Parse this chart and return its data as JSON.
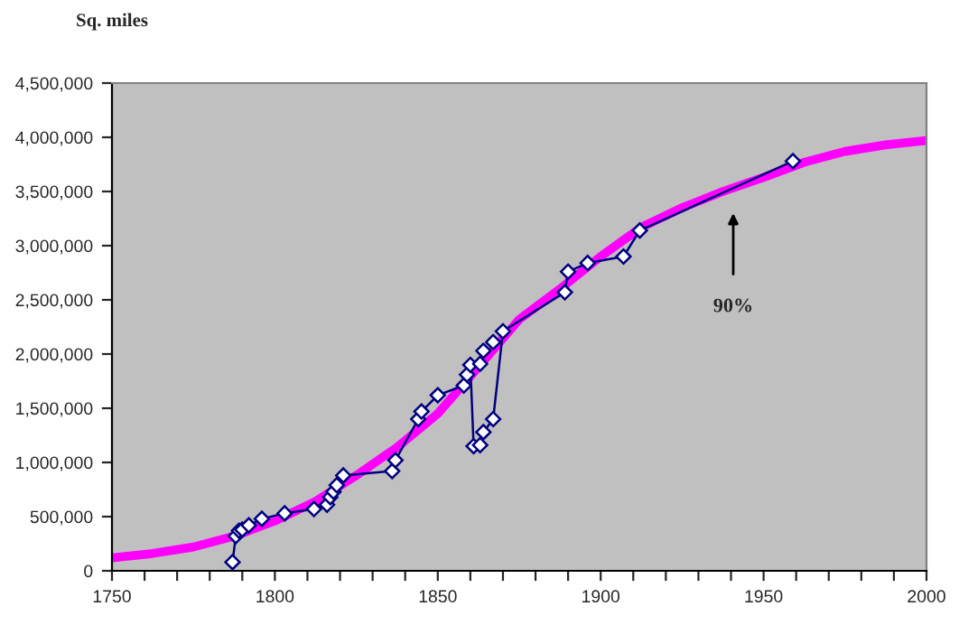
{
  "chart_data": {
    "type": "line",
    "ylabel": "Sq. miles",
    "xlim": [
      1750,
      2000
    ],
    "ylim": [
      0,
      4500000
    ],
    "xticks": [
      1750,
      {
        "value": 1760,
        "label": null
      },
      {
        "value": 1770,
        "label": null
      },
      {
        "value": 1780,
        "label": null
      },
      {
        "value": 1790,
        "label": null
      },
      1800,
      {
        "value": 1810,
        "label": null
      },
      {
        "value": 1820,
        "label": null
      },
      {
        "value": 1830,
        "label": null
      },
      {
        "value": 1840,
        "label": null
      },
      1850,
      {
        "value": 1860,
        "label": null
      },
      {
        "value": 1870,
        "label": null
      },
      {
        "value": 1880,
        "label": null
      },
      {
        "value": 1890,
        "label": null
      },
      1900,
      {
        "value": 1910,
        "label": null
      },
      {
        "value": 1920,
        "label": null
      },
      {
        "value": 1930,
        "label": null
      },
      {
        "value": 1940,
        "label": null
      },
      1950,
      {
        "value": 1960,
        "label": null
      },
      {
        "value": 1970,
        "label": null
      },
      {
        "value": 1980,
        "label": null
      },
      {
        "value": 1990,
        "label": null
      },
      2000
    ],
    "yticks": [
      0,
      {
        "value": 500000,
        "label": "500,000"
      },
      {
        "value": 1000000,
        "label": "1,000,000"
      },
      {
        "value": 1500000,
        "label": "1,500,000"
      },
      {
        "value": 2000000,
        "label": "2,000,000"
      },
      {
        "value": 2500000,
        "label": "2,500,000"
      },
      {
        "value": 3000000,
        "label": "3,000,000"
      },
      {
        "value": 3500000,
        "label": "3,500,000"
      },
      {
        "value": 4000000,
        "label": "4,000,000"
      },
      {
        "value": 4500000,
        "label": "4,500,000"
      }
    ],
    "grid": false,
    "series": [
      {
        "color": "#ff00ff",
        "marker": "none",
        "x": [
          1750,
          1762.5,
          1775,
          1787.5,
          1800,
          1812.5,
          1825,
          1837.5,
          1850,
          1862.5,
          1875,
          1887.5,
          1900,
          1912.5,
          1925,
          1937.5,
          1950,
          1962.5,
          1975,
          1987.5,
          2000
        ],
        "values": [
          120000,
          160000,
          220000,
          320000,
          460000,
          640000,
          880000,
          1140000,
          1450000,
          1880000,
          2320000,
          2600000,
          2900000,
          3170000,
          3350000,
          3500000,
          3630000,
          3770000,
          3870000,
          3930000,
          3970000
        ]
      },
      {
        "color": "#000080",
        "marker": "diamond",
        "x": [
          1787,
          1788,
          1789,
          1790,
          1792,
          1796,
          1803,
          1812,
          1816,
          1817,
          1818,
          1819,
          1821,
          1836,
          1837,
          1844,
          1845,
          1850,
          1858,
          1859,
          1860,
          1861,
          1863,
          1864,
          1867,
          1870,
          1889,
          1890,
          1896,
          1907,
          1912,
          1959
        ],
        "values": [
          80000,
          320000,
          370000,
          380000,
          420000,
          480000,
          530000,
          570000,
          610000,
          680000,
          730000,
          790000,
          880000,
          920000,
          1020000,
          1400000,
          1470000,
          1620000,
          1710000,
          1810000,
          1900000,
          1150000,
          1160000,
          1280000,
          1400000,
          2210000,
          2570000,
          2760000,
          2840000,
          2900000,
          3140000,
          3780000
        ]
      },
      {
        "type": "scatter",
        "color": "#000080",
        "marker": "diamond",
        "x": [
          1863,
          1864,
          1867
        ],
        "values": [
          1910000,
          2030000,
          2110000
        ]
      }
    ],
    "annotations": [
      "90%"
    ]
  }
}
